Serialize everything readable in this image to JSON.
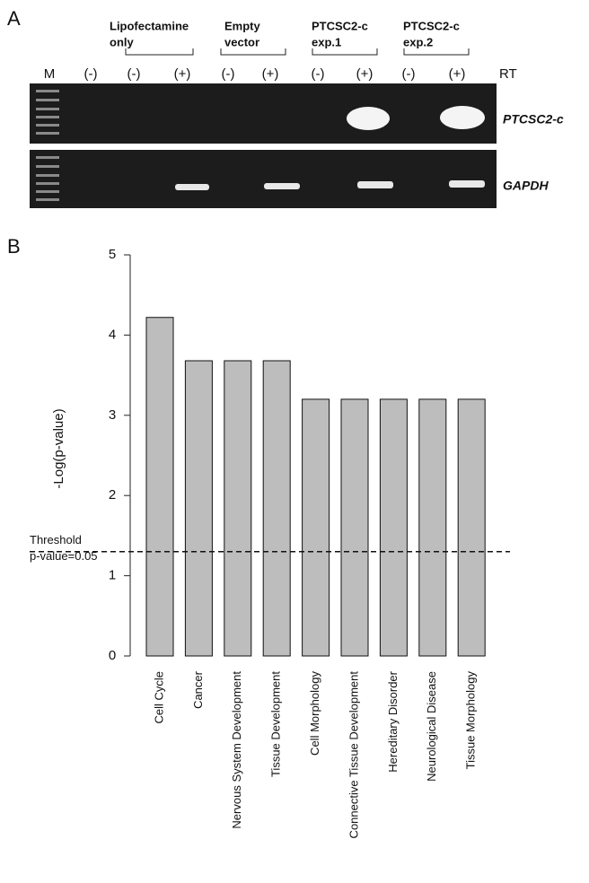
{
  "panels": [
    "A",
    "B"
  ],
  "gel": {
    "groups": [
      [
        "Lipofectamine",
        "only"
      ],
      [
        "Empty",
        "vector"
      ],
      [
        "PTCSC2-c",
        "exp.1"
      ],
      [
        "PTCSC2-c",
        "exp.2"
      ]
    ],
    "lanes": [
      "M",
      "(-)",
      "(-)",
      "(+)",
      "(-)",
      "(+)",
      "(-)",
      "(+)",
      "(-)",
      "(+)"
    ],
    "rt_label": "RT",
    "genes": [
      "PTCSC2-c",
      "GAPDH"
    ]
  },
  "chart_data": {
    "type": "bar",
    "y_label": "-Log(p-value)",
    "categories": [
      "Cell Cycle",
      "Cancer",
      "Nervous System Development",
      "Tissue Development",
      "Cell Morphology",
      "Connective Tissue Development",
      "Hereditary Disorder",
      "Neurological Disease",
      "Tissue Morphology"
    ],
    "values": [
      4.22,
      3.68,
      3.68,
      3.68,
      3.2,
      3.2,
      3.2,
      3.2,
      3.2
    ],
    "color": "#bdbdbd",
    "ylim": [
      0,
      5
    ],
    "yticks": [
      0,
      1,
      2,
      3,
      4,
      5
    ],
    "threshold": {
      "value": 1.3,
      "label": [
        "Threshold",
        "p-value=0.05"
      ]
    }
  }
}
